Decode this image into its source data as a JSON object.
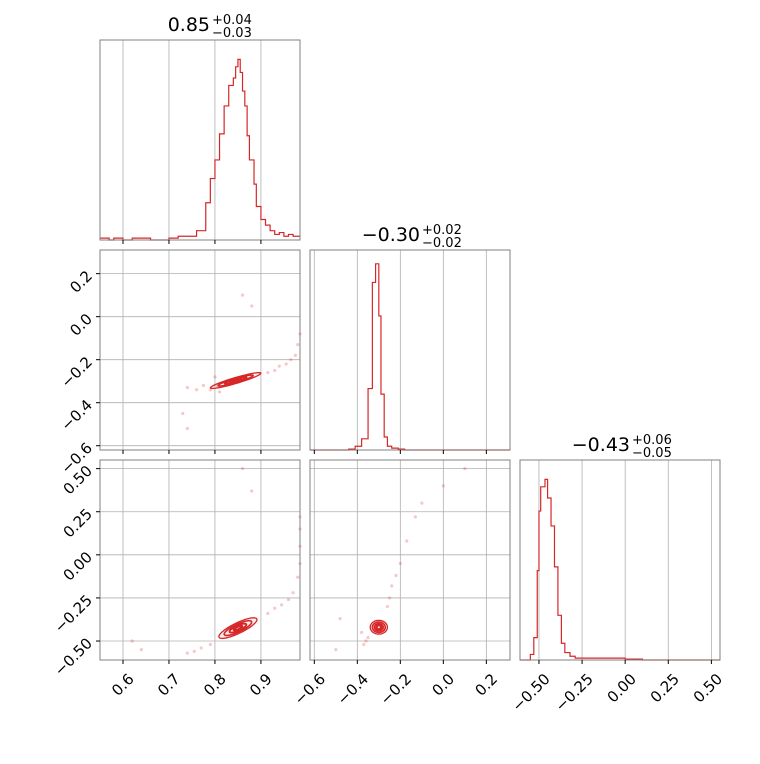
{
  "chart_data": {
    "type": "corner",
    "color": "#d62728",
    "grid": true,
    "parameters": [
      {
        "title_value": "0.85",
        "title_plus": "+0.04",
        "title_minus": "−0.03",
        "range": [
          0.55,
          0.985
        ],
        "ticks": [
          0.6,
          0.7,
          0.8,
          0.9
        ],
        "tick_labels": [
          "0.6",
          "0.7",
          "0.8",
          "0.9"
        ]
      },
      {
        "title_value": "−0.30",
        "title_plus": "+0.02",
        "title_minus": "−0.02",
        "range": [
          -0.62,
          0.31
        ],
        "ticks": [
          -0.6,
          -0.4,
          -0.2,
          0.0,
          0.2
        ],
        "tick_labels": [
          "−0.6",
          "−0.4",
          "−0.2",
          "0.0",
          "0.2"
        ]
      },
      {
        "title_value": "−0.43",
        "title_plus": "+0.06",
        "title_minus": "−0.05",
        "range": [
          -0.61,
          0.55
        ],
        "ticks": [
          -0.5,
          -0.25,
          0.0,
          0.25,
          0.5
        ],
        "tick_labels": [
          "−0.50",
          "−0.25",
          "0.00",
          "0.25",
          "0.50"
        ]
      }
    ],
    "histograms": [
      {
        "param": 0,
        "bins": [
          [
            0.55,
            0.57,
            0.01
          ],
          [
            0.57,
            0.58,
            0.0
          ],
          [
            0.58,
            0.6,
            0.01
          ],
          [
            0.6,
            0.62,
            0.0
          ],
          [
            0.62,
            0.64,
            0.01
          ],
          [
            0.64,
            0.66,
            0.01
          ],
          [
            0.66,
            0.68,
            0.0
          ],
          [
            0.68,
            0.7,
            0.0
          ],
          [
            0.7,
            0.72,
            0.01
          ],
          [
            0.72,
            0.74,
            0.02
          ],
          [
            0.74,
            0.76,
            0.02
          ],
          [
            0.76,
            0.78,
            0.05
          ],
          [
            0.78,
            0.79,
            0.2
          ],
          [
            0.79,
            0.8,
            0.33
          ],
          [
            0.8,
            0.81,
            0.43
          ],
          [
            0.81,
            0.82,
            0.57
          ],
          [
            0.82,
            0.83,
            0.72
          ],
          [
            0.83,
            0.84,
            0.83
          ],
          [
            0.84,
            0.845,
            0.87
          ],
          [
            0.845,
            0.85,
            0.93
          ],
          [
            0.85,
            0.855,
            0.97
          ],
          [
            0.855,
            0.86,
            0.9
          ],
          [
            0.86,
            0.865,
            0.8
          ],
          [
            0.865,
            0.87,
            0.72
          ],
          [
            0.87,
            0.875,
            0.56
          ],
          [
            0.875,
            0.885,
            0.43
          ],
          [
            0.885,
            0.89,
            0.3
          ],
          [
            0.89,
            0.9,
            0.18
          ],
          [
            0.9,
            0.91,
            0.11
          ],
          [
            0.91,
            0.92,
            0.08
          ],
          [
            0.92,
            0.93,
            0.05
          ],
          [
            0.93,
            0.94,
            0.03
          ],
          [
            0.94,
            0.95,
            0.04
          ],
          [
            0.95,
            0.96,
            0.02
          ],
          [
            0.96,
            0.97,
            0.03
          ],
          [
            0.97,
            0.985,
            0.02
          ]
        ]
      },
      {
        "param": 1,
        "bins": [
          [
            -0.62,
            -0.44,
            0.0
          ],
          [
            -0.44,
            -0.41,
            0.005
          ],
          [
            -0.41,
            -0.38,
            0.02
          ],
          [
            -0.38,
            -0.35,
            0.06
          ],
          [
            -0.35,
            -0.33,
            0.33
          ],
          [
            -0.33,
            -0.315,
            0.9
          ],
          [
            -0.315,
            -0.3,
            1.0
          ],
          [
            -0.3,
            -0.29,
            0.72
          ],
          [
            -0.29,
            -0.275,
            0.3
          ],
          [
            -0.275,
            -0.26,
            0.07
          ],
          [
            -0.26,
            -0.24,
            0.02
          ],
          [
            -0.24,
            -0.21,
            0.01
          ],
          [
            -0.21,
            -0.18,
            0.005
          ],
          [
            -0.18,
            0.31,
            0.0
          ]
        ]
      },
      {
        "param": 2,
        "bins": [
          [
            -0.61,
            -0.55,
            0.0
          ],
          [
            -0.55,
            -0.53,
            0.03
          ],
          [
            -0.53,
            -0.51,
            0.12
          ],
          [
            -0.51,
            -0.5,
            0.48
          ],
          [
            -0.5,
            -0.49,
            0.8
          ],
          [
            -0.49,
            -0.465,
            0.93
          ],
          [
            -0.465,
            -0.45,
            0.97
          ],
          [
            -0.45,
            -0.43,
            0.87
          ],
          [
            -0.43,
            -0.41,
            0.72
          ],
          [
            -0.41,
            -0.39,
            0.5
          ],
          [
            -0.39,
            -0.37,
            0.24
          ],
          [
            -0.37,
            -0.35,
            0.09
          ],
          [
            -0.35,
            -0.32,
            0.04
          ],
          [
            -0.32,
            -0.29,
            0.02
          ],
          [
            -0.29,
            -0.2,
            0.01
          ],
          [
            -0.2,
            -0.1,
            0.01
          ],
          [
            -0.1,
            0.0,
            0.01
          ],
          [
            0.0,
            0.1,
            0.005
          ],
          [
            0.1,
            0.55,
            0.0
          ]
        ]
      }
    ],
    "contours": [
      {
        "x_param": 0,
        "y_param": 1,
        "center": [
          0.845,
          -0.297
        ],
        "slope": 0.65,
        "half_lengths": [
          0.015,
          0.028,
          0.045,
          0.065
        ],
        "half_widths": [
          0.003,
          0.006,
          0.009,
          0.012
        ],
        "scatter": [
          [
            0.74,
            -0.33
          ],
          [
            0.76,
            -0.34
          ],
          [
            0.775,
            -0.32
          ],
          [
            0.79,
            -0.34
          ],
          [
            0.8,
            -0.28
          ],
          [
            0.805,
            -0.32
          ],
          [
            0.81,
            -0.35
          ],
          [
            0.915,
            -0.26
          ],
          [
            0.93,
            -0.25
          ],
          [
            0.94,
            -0.23
          ],
          [
            0.955,
            -0.22
          ],
          [
            0.965,
            -0.2
          ],
          [
            0.975,
            -0.18
          ],
          [
            0.98,
            -0.13
          ],
          [
            0.985,
            -0.08
          ],
          [
            0.74,
            -0.52
          ],
          [
            0.73,
            -0.45
          ],
          [
            0.88,
            0.05
          ],
          [
            0.86,
            0.1
          ]
        ]
      },
      {
        "x_param": 0,
        "y_param": 2,
        "center": [
          0.85,
          -0.425
        ],
        "slope": 1.55,
        "half_lengths": [
          0.015,
          0.03,
          0.05,
          0.07
        ],
        "half_widths": [
          0.005,
          0.01,
          0.015,
          0.02
        ],
        "scatter": [
          [
            0.74,
            -0.57
          ],
          [
            0.755,
            -0.56
          ],
          [
            0.77,
            -0.54
          ],
          [
            0.79,
            -0.52
          ],
          [
            0.915,
            -0.34
          ],
          [
            0.93,
            -0.31
          ],
          [
            0.945,
            -0.29
          ],
          [
            0.96,
            -0.26
          ],
          [
            0.97,
            -0.22
          ],
          [
            0.98,
            -0.13
          ],
          [
            0.985,
            -0.05
          ],
          [
            0.985,
            0.05
          ],
          [
            0.985,
            0.15
          ],
          [
            0.985,
            0.22
          ],
          [
            0.62,
            -0.5
          ],
          [
            0.88,
            0.37
          ],
          [
            0.86,
            0.5
          ],
          [
            0.64,
            -0.55
          ]
        ]
      },
      {
        "x_param": 1,
        "y_param": 2,
        "center": [
          -0.3,
          -0.42
        ],
        "slope": 3.3,
        "half_lengths": [
          0.012,
          0.02,
          0.03,
          0.04
        ],
        "half_widths": [
          0.01,
          0.02,
          0.03,
          0.04
        ],
        "scatter": [
          [
            -0.37,
            -0.52
          ],
          [
            -0.36,
            -0.5
          ],
          [
            -0.35,
            -0.48
          ],
          [
            -0.38,
            -0.45
          ],
          [
            -0.26,
            -0.3
          ],
          [
            -0.25,
            -0.25
          ],
          [
            -0.24,
            -0.18
          ],
          [
            -0.22,
            -0.12
          ],
          [
            -0.2,
            -0.05
          ],
          [
            -0.17,
            0.08
          ],
          [
            -0.13,
            0.22
          ],
          [
            -0.1,
            0.3
          ],
          [
            0.0,
            0.4
          ],
          [
            0.1,
            0.5
          ],
          [
            -0.48,
            -0.37
          ],
          [
            -0.5,
            -0.55
          ]
        ]
      }
    ]
  }
}
